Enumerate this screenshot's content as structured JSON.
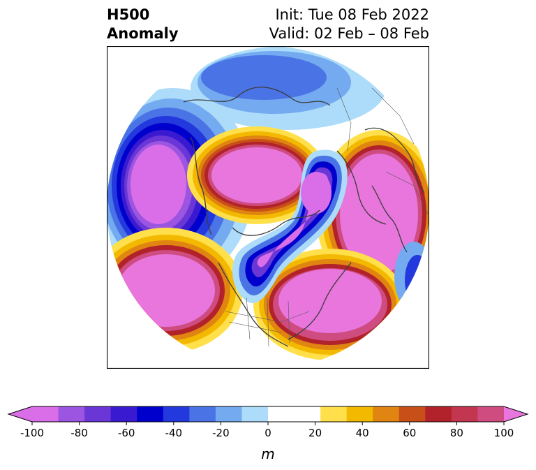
{
  "header": {
    "title_line1": "H500",
    "title_line2": "Anomaly",
    "init": "Init: Tue 08 Feb 2022",
    "valid": "Valid: 02 Feb – 08 Feb"
  },
  "colorbar": {
    "unit": "m",
    "ticks": [
      "-100",
      "-80",
      "-60",
      "-40",
      "-20",
      "0",
      "20",
      "40",
      "60",
      "80",
      "100"
    ],
    "colors": [
      "#d96ee8",
      "#9b55e0",
      "#6a36d6",
      "#3a1ad0",
      "#0000cc",
      "#2339dd",
      "#4a74e6",
      "#73aaf0",
      "#acdcfa",
      "#ffffff",
      "#ffffff",
      "#ffe04a",
      "#f3b800",
      "#e08412",
      "#c84f18",
      "#b2222a",
      "#c23650",
      "#cf4c80",
      "#db62b4",
      "#e876dd"
    ]
  },
  "map": {
    "region": "Northern Hemisphere polar stereographic"
  }
}
